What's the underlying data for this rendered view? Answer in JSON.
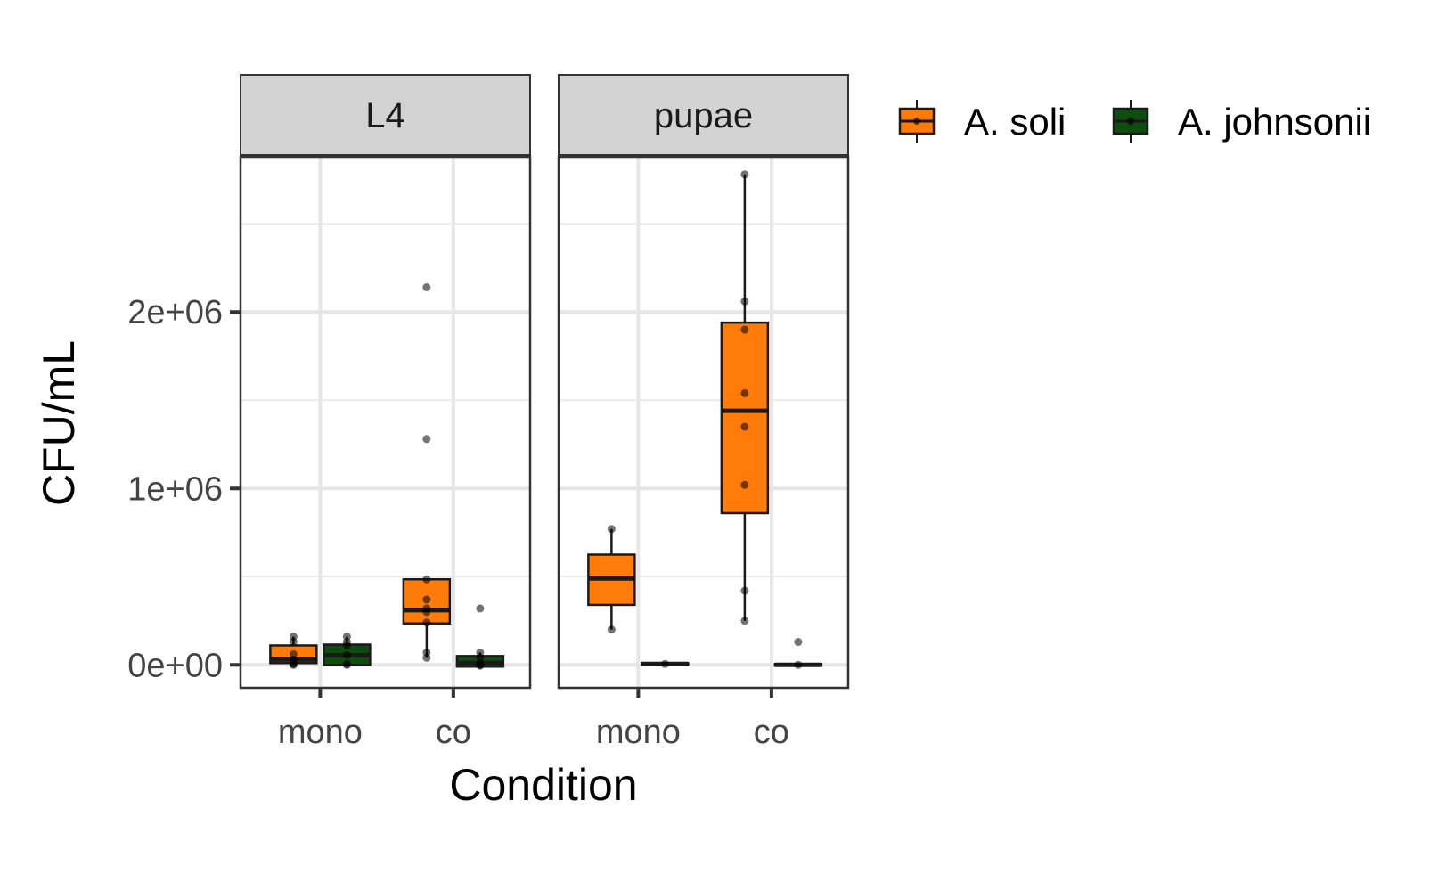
{
  "chart_data": {
    "type": "boxplot",
    "xlabel": "Condition",
    "ylabel": "CFU/mL",
    "ylim": [
      -130000,
      2880000
    ],
    "y_ticks": [
      0,
      1000000,
      2000000
    ],
    "y_tick_labels": [
      "0e+00",
      "1e+06",
      "2e+06"
    ],
    "categories": [
      "mono",
      "co"
    ],
    "grid": true,
    "legend_position": "right",
    "legend": [
      {
        "name": "A. soli",
        "color": "#ff7b0a"
      },
      {
        "name": "A. johnsonii",
        "color": "#0f4c0f"
      }
    ],
    "facets": [
      {
        "label": "L4",
        "groups": [
          {
            "category": "mono",
            "series": "A. soli",
            "min": 0,
            "q1": 10000,
            "median": 30000,
            "q3": 110000,
            "max": 160000,
            "points": [
              0,
              5000,
              10000,
              30000,
              60000,
              130000,
              160000
            ]
          },
          {
            "category": "mono",
            "series": "A. johnsonii",
            "min": 0,
            "q1": 0,
            "median": 55000,
            "q3": 115000,
            "max": 160000,
            "points": [
              0,
              5000,
              55000,
              110000,
              130000,
              160000
            ]
          },
          {
            "category": "co",
            "series": "A. soli",
            "min": 40000,
            "q1": 235000,
            "median": 310000,
            "q3": 485000,
            "max": 485000,
            "points": [
              40000,
              70000,
              240000,
              300000,
              320000,
              370000,
              485000,
              1280000,
              2140000
            ]
          },
          {
            "category": "co",
            "series": "A. johnsonii",
            "min": -10000,
            "q1": -10000,
            "median": 10000,
            "q3": 50000,
            "max": 70000,
            "points": [
              -5000,
              0,
              5000,
              10000,
              40000,
              70000,
              320000
            ]
          }
        ]
      },
      {
        "label": "pupae",
        "groups": [
          {
            "category": "mono",
            "series": "A. soli",
            "min": 200000,
            "q1": 340000,
            "median": 490000,
            "q3": 625000,
            "max": 770000,
            "points": [
              200000,
              770000
            ]
          },
          {
            "category": "mono",
            "series": "A. johnsonii",
            "min": 0,
            "q1": 0,
            "median": 5000,
            "q3": 10000,
            "max": 10000,
            "points": [
              5000
            ]
          },
          {
            "category": "co",
            "series": "A. soli",
            "min": 250000,
            "q1": 860000,
            "median": 1440000,
            "q3": 1940000,
            "max": 2780000,
            "points": [
              250000,
              420000,
              1020000,
              1350000,
              1540000,
              1900000,
              2060000,
              2780000
            ]
          },
          {
            "category": "co",
            "series": "A. johnsonii",
            "min": -5000,
            "q1": -5000,
            "median": 0,
            "q3": 5000,
            "max": 5000,
            "points": [
              0,
              130000
            ]
          }
        ]
      }
    ]
  }
}
